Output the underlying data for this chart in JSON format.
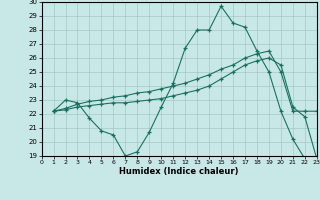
{
  "xlabel": "Humidex (Indice chaleur)",
  "xlim": [
    0,
    23
  ],
  "ylim": [
    19,
    30
  ],
  "xticks": [
    0,
    1,
    2,
    3,
    4,
    5,
    6,
    7,
    8,
    9,
    10,
    11,
    12,
    13,
    14,
    15,
    16,
    17,
    18,
    19,
    20,
    21,
    22,
    23
  ],
  "yticks": [
    19,
    20,
    21,
    22,
    23,
    24,
    25,
    26,
    27,
    28,
    29,
    30
  ],
  "bg_color": "#c8e8e8",
  "line_color": "#1a7060",
  "lines": [
    {
      "x": [
        1,
        2,
        3,
        4,
        5,
        6,
        7,
        8,
        9,
        10,
        11,
        12,
        13,
        14,
        15,
        16,
        17,
        18,
        19,
        20,
        21,
        22,
        23
      ],
      "y": [
        22.2,
        23.0,
        22.8,
        21.7,
        20.8,
        20.5,
        19.0,
        19.3,
        20.7,
        22.5,
        24.2,
        26.7,
        28.0,
        28.0,
        29.7,
        28.5,
        28.2,
        26.5,
        25.0,
        22.2,
        20.2,
        18.8,
        18.8
      ]
    },
    {
      "x": [
        1,
        2,
        3,
        4,
        5,
        6,
        7,
        8,
        9,
        10,
        11,
        12,
        13,
        14,
        15,
        16,
        17,
        18,
        19,
        20,
        21,
        22,
        23
      ],
      "y": [
        22.2,
        22.4,
        22.7,
        22.9,
        23.0,
        23.2,
        23.3,
        23.5,
        23.6,
        23.8,
        24.0,
        24.2,
        24.5,
        24.8,
        25.2,
        25.5,
        26.0,
        26.3,
        26.5,
        25.0,
        22.2,
        22.2,
        22.2
      ]
    },
    {
      "x": [
        1,
        2,
        3,
        4,
        5,
        6,
        7,
        8,
        9,
        10,
        11,
        12,
        13,
        14,
        15,
        16,
        17,
        18,
        19,
        20,
        21,
        22,
        23
      ],
      "y": [
        22.2,
        22.3,
        22.5,
        22.6,
        22.7,
        22.8,
        22.8,
        22.9,
        23.0,
        23.1,
        23.3,
        23.5,
        23.7,
        24.0,
        24.5,
        25.0,
        25.5,
        25.8,
        26.0,
        25.5,
        22.5,
        21.8,
        18.8
      ]
    }
  ]
}
